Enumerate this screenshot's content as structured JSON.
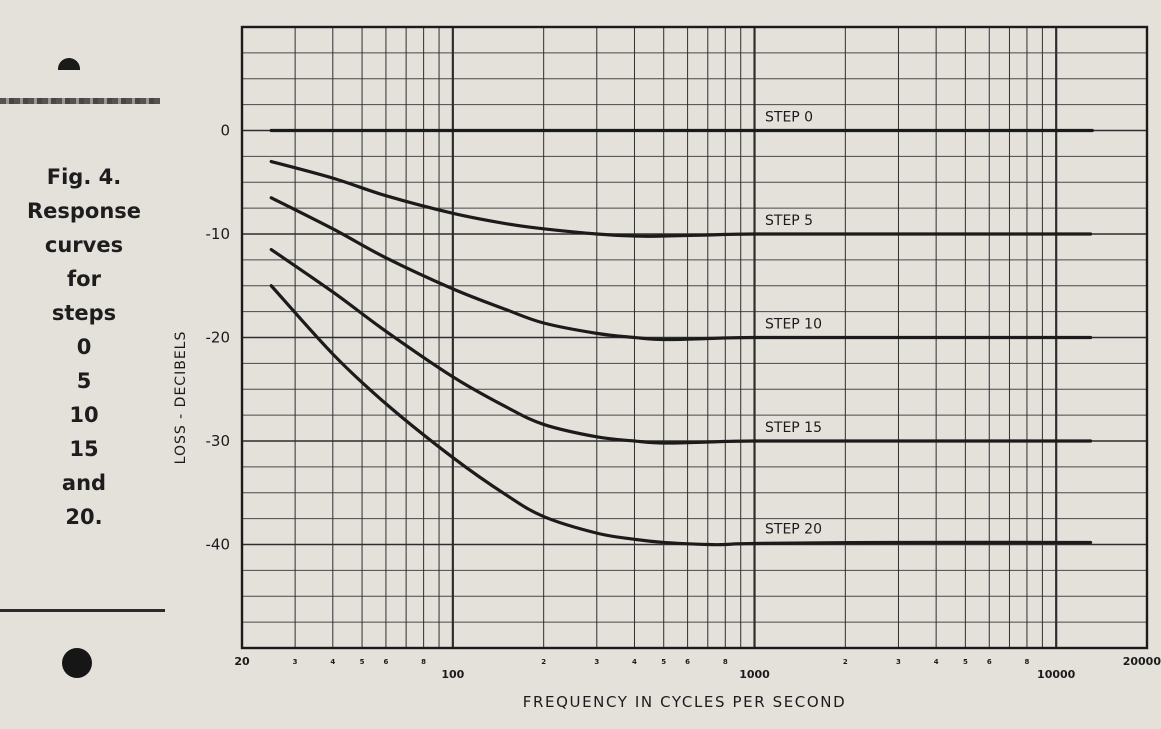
{
  "caption": {
    "lines": [
      "Fig. 4.",
      "Response",
      "curves",
      "for",
      "steps",
      "0",
      "5",
      "10",
      "15",
      "and",
      "20."
    ]
  },
  "chart_data": {
    "type": "line",
    "title": "",
    "xlabel": "FREQUENCY IN CYCLES PER SECOND",
    "ylabel": "LOSS - DECIBELS",
    "xscale": "log",
    "xlim": [
      20,
      20000
    ],
    "ylim": [
      -50,
      10
    ],
    "grid": true,
    "y_ticks": [
      {
        "value": 0,
        "label": "0"
      },
      {
        "value": -10,
        "label": "-10"
      },
      {
        "value": -20,
        "label": "-20"
      },
      {
        "value": -30,
        "label": "-30"
      },
      {
        "value": -40,
        "label": "-40"
      }
    ],
    "x_ticks": [
      {
        "value": 20,
        "label": "20"
      },
      {
        "value": 30,
        "label": "3"
      },
      {
        "value": 40,
        "label": "4"
      },
      {
        "value": 50,
        "label": "5"
      },
      {
        "value": 60,
        "label": "6"
      },
      {
        "value": 80,
        "label": "8"
      },
      {
        "value": 100,
        "label": "100"
      },
      {
        "value": 200,
        "label": "2"
      },
      {
        "value": 300,
        "label": "3"
      },
      {
        "value": 400,
        "label": "4"
      },
      {
        "value": 500,
        "label": "5"
      },
      {
        "value": 600,
        "label": "6"
      },
      {
        "value": 800,
        "label": "8"
      },
      {
        "value": 1000,
        "label": "1000"
      },
      {
        "value": 2000,
        "label": "2"
      },
      {
        "value": 3000,
        "label": "3"
      },
      {
        "value": 4000,
        "label": "4"
      },
      {
        "value": 5000,
        "label": "5"
      },
      {
        "value": 6000,
        "label": "6"
      },
      {
        "value": 8000,
        "label": "8"
      },
      {
        "value": 10000,
        "label": "10000"
      },
      {
        "value": 20000,
        "label": "20000"
      }
    ],
    "series": [
      {
        "name": "STEP 0",
        "x": [
          25,
          100,
          1000,
          10000,
          13000
        ],
        "y": [
          0,
          0,
          0,
          0,
          0
        ]
      },
      {
        "name": "STEP 5",
        "x": [
          25,
          40,
          60,
          100,
          150,
          200,
          300,
          400,
          500,
          700,
          1000,
          3000,
          10000,
          13000
        ],
        "y": [
          -3,
          -4.6,
          -6.3,
          -8,
          -9,
          -9.5,
          -10,
          -10.2,
          -10.2,
          -10.1,
          -10,
          -10,
          -10,
          -10
        ]
      },
      {
        "name": "STEP 10",
        "x": [
          25,
          40,
          60,
          100,
          150,
          200,
          300,
          400,
          500,
          700,
          1000,
          3000,
          10000,
          13000
        ],
        "y": [
          -6.5,
          -9.5,
          -12.3,
          -15.3,
          -17.3,
          -18.6,
          -19.6,
          -20,
          -20.2,
          -20.1,
          -20,
          -20,
          -20,
          -20
        ]
      },
      {
        "name": "STEP 15",
        "x": [
          25,
          40,
          60,
          100,
          150,
          200,
          300,
          400,
          500,
          700,
          1000,
          3000,
          10000,
          13000
        ],
        "y": [
          -11.5,
          -15.6,
          -19.4,
          -23.8,
          -26.7,
          -28.4,
          -29.6,
          -30,
          -30.2,
          -30.1,
          -30,
          -30,
          -30,
          -30
        ]
      },
      {
        "name": "STEP 20",
        "x": [
          25,
          40,
          60,
          100,
          150,
          200,
          300,
          400,
          500,
          700,
          800,
          1000,
          3000,
          10000,
          13000
        ],
        "y": [
          -15,
          -21.6,
          -26.4,
          -31.6,
          -35.2,
          -37.3,
          -38.9,
          -39.5,
          -39.8,
          -40,
          -40,
          -39.9,
          -39.8,
          -39.8,
          -39.8
        ]
      }
    ]
  },
  "colors": {
    "paper": "#e4e1db",
    "ink": "#1b1b1b",
    "grid": "#2e2e2e"
  }
}
